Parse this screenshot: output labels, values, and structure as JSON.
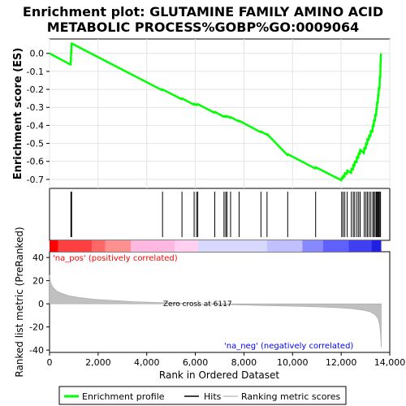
{
  "title_line1": "Enrichment plot: GLUTAMINE FAMILY AMINO ACID",
  "title_line2": "METABOLIC PROCESS%GOBP%GO:0009064",
  "legend": {
    "enrichment": "Enrichment profile",
    "hits": "Hits",
    "ranking": "Ranking metric scores"
  },
  "colors": {
    "enrichment_line": "#00ff00",
    "hits": "#000000",
    "ranking_fill": "#c0c0c0",
    "pos_label": "#ff0000",
    "neg_label": "#0000ff"
  },
  "chart_data": {
    "type": "line",
    "ylabel_top": "Enrichment score (ES)",
    "ylabel_bottom": "Ranked list metric (PreRanked)",
    "xlabel": "Rank in Ordered Dataset",
    "x_ticks": [
      0,
      2000,
      4000,
      6000,
      8000,
      10000,
      12000,
      14000
    ],
    "x_tick_labels": [
      "0",
      "2,000",
      "4,000",
      "6,000",
      "8,000",
      "10,000",
      "12,000",
      "14,000"
    ],
    "xlim": [
      0,
      14000
    ],
    "es_ylim": [
      -0.75,
      0.08
    ],
    "es_y_ticks": [
      0.0,
      -0.1,
      -0.2,
      -0.3,
      -0.4,
      -0.5,
      -0.6,
      -0.7
    ],
    "es_y_tick_labels": [
      "0.0",
      "-0.1",
      "-0.2",
      "-0.3",
      "-0.4",
      "-0.5",
      "-0.6",
      "-0.7"
    ],
    "metric_ylim": [
      -42,
      45
    ],
    "metric_y_ticks": [
      40,
      20,
      0,
      -20,
      -40
    ],
    "metric_y_tick_labels": [
      "40",
      "20",
      "0",
      "-20",
      "-40"
    ],
    "zero_cross_label": "Zero cross at 6117",
    "zero_cross": 6117,
    "pos_label": "'na_pos' (positively correlated)",
    "neg_label": "'na_neg' (negatively correlated)",
    "n_genes": 13650,
    "hits": [
      880,
      890,
      900,
      910,
      4650,
      5450,
      5950,
      6050,
      6100,
      6800,
      7180,
      7250,
      7300,
      7450,
      7800,
      8700,
      8950,
      9800,
      10950,
      12020,
      12080,
      12150,
      12250,
      12420,
      12500,
      12560,
      12650,
      12720,
      12780,
      12950,
      13020,
      13080,
      13150,
      13220,
      13300,
      13350,
      13400,
      13450,
      13480,
      13520,
      13550,
      13590,
      13620
    ],
    "es_curve": [
      [
        0,
        0.0
      ],
      [
        870,
        -0.063
      ],
      [
        880,
        -0.03
      ],
      [
        890,
        0.0
      ],
      [
        900,
        0.03
      ],
      [
        910,
        0.055
      ],
      [
        4640,
        -0.205
      ],
      [
        4650,
        -0.2
      ],
      [
        5440,
        -0.255
      ],
      [
        5450,
        -0.25
      ],
      [
        5940,
        -0.285
      ],
      [
        5950,
        -0.28
      ],
      [
        6040,
        -0.287
      ],
      [
        6050,
        -0.283
      ],
      [
        6090,
        -0.286
      ],
      [
        6100,
        -0.282
      ],
      [
        6790,
        -0.33
      ],
      [
        6800,
        -0.325
      ],
      [
        7170,
        -0.352
      ],
      [
        7180,
        -0.348
      ],
      [
        7240,
        -0.352
      ],
      [
        7250,
        -0.348
      ],
      [
        7290,
        -0.352
      ],
      [
        7300,
        -0.348
      ],
      [
        7440,
        -0.358
      ],
      [
        7450,
        -0.354
      ],
      [
        7790,
        -0.378
      ],
      [
        7800,
        -0.374
      ],
      [
        8690,
        -0.438
      ],
      [
        8700,
        -0.434
      ],
      [
        8940,
        -0.452
      ],
      [
        8950,
        -0.448
      ],
      [
        9790,
        -0.565
      ],
      [
        9800,
        -0.56
      ],
      [
        10940,
        -0.64
      ],
      [
        10950,
        -0.632
      ],
      [
        12010,
        -0.705
      ],
      [
        12020,
        -0.69
      ],
      [
        12070,
        -0.695
      ],
      [
        12080,
        -0.68
      ],
      [
        12140,
        -0.685
      ],
      [
        12150,
        -0.665
      ],
      [
        12240,
        -0.67
      ],
      [
        12250,
        -0.65
      ],
      [
        12410,
        -0.665
      ],
      [
        12420,
        -0.64
      ],
      [
        12490,
        -0.645
      ],
      [
        12500,
        -0.62
      ],
      [
        12550,
        -0.625
      ],
      [
        12560,
        -0.6
      ],
      [
        12640,
        -0.605
      ],
      [
        12650,
        -0.575
      ],
      [
        12710,
        -0.58
      ],
      [
        12720,
        -0.555
      ],
      [
        12770,
        -0.56
      ],
      [
        12780,
        -0.535
      ],
      [
        12940,
        -0.555
      ],
      [
        12950,
        -0.525
      ],
      [
        13010,
        -0.53
      ],
      [
        13020,
        -0.5
      ],
      [
        13070,
        -0.505
      ],
      [
        13080,
        -0.475
      ],
      [
        13140,
        -0.48
      ],
      [
        13150,
        -0.455
      ],
      [
        13210,
        -0.46
      ],
      [
        13220,
        -0.43
      ],
      [
        13290,
        -0.435
      ],
      [
        13300,
        -0.4
      ],
      [
        13340,
        -0.405
      ],
      [
        13350,
        -0.37
      ],
      [
        13390,
        -0.375
      ],
      [
        13400,
        -0.34
      ],
      [
        13440,
        -0.345
      ],
      [
        13450,
        -0.305
      ],
      [
        13470,
        -0.31
      ],
      [
        13480,
        -0.27
      ],
      [
        13510,
        -0.275
      ],
      [
        13520,
        -0.23
      ],
      [
        13540,
        -0.235
      ],
      [
        13550,
        -0.19
      ],
      [
        13580,
        -0.195
      ],
      [
        13590,
        -0.13
      ],
      [
        13610,
        -0.135
      ],
      [
        13620,
        -0.06
      ],
      [
        13640,
        0.0
      ]
    ],
    "metric_curve": [
      [
        0,
        25
      ],
      [
        50,
        18
      ],
      [
        150,
        14
      ],
      [
        300,
        11
      ],
      [
        500,
        9
      ],
      [
        800,
        7
      ],
      [
        1200,
        5.5
      ],
      [
        1800,
        4
      ],
      [
        2500,
        3
      ],
      [
        3500,
        1.8
      ],
      [
        4500,
        1.1
      ],
      [
        5500,
        0.4
      ],
      [
        6117,
        0
      ],
      [
        7000,
        -0.6
      ],
      [
        8000,
        -1.1
      ],
      [
        9000,
        -1.6
      ],
      [
        10000,
        -2.1
      ],
      [
        11000,
        -2.7
      ],
      [
        11800,
        -3.3
      ],
      [
        12400,
        -4.2
      ],
      [
        12900,
        -5.5
      ],
      [
        13200,
        -7
      ],
      [
        13400,
        -9.5
      ],
      [
        13520,
        -13
      ],
      [
        13580,
        -18
      ],
      [
        13620,
        -26
      ],
      [
        13650,
        -38
      ]
    ],
    "band_colors": [
      {
        "from": 0,
        "to": 350,
        "color": "#ff0000"
      },
      {
        "from": 350,
        "to": 1750,
        "color": "#ff4040"
      },
      {
        "from": 1750,
        "to": 2300,
        "color": "#ff6868"
      },
      {
        "from": 2300,
        "to": 3350,
        "color": "#ff9090"
      },
      {
        "from": 3350,
        "to": 5150,
        "color": "#ffb8e0"
      },
      {
        "from": 5150,
        "to": 6117,
        "color": "#ffd0f0"
      },
      {
        "from": 6117,
        "to": 8950,
        "color": "#d8d8ff"
      },
      {
        "from": 8950,
        "to": 10400,
        "color": "#c0c0ff"
      },
      {
        "from": 10400,
        "to": 11250,
        "color": "#8888ff"
      },
      {
        "from": 11250,
        "to": 12300,
        "color": "#6060ff"
      },
      {
        "from": 12300,
        "to": 13250,
        "color": "#4040f0"
      },
      {
        "from": 13250,
        "to": 13650,
        "color": "#2020e0"
      }
    ]
  }
}
